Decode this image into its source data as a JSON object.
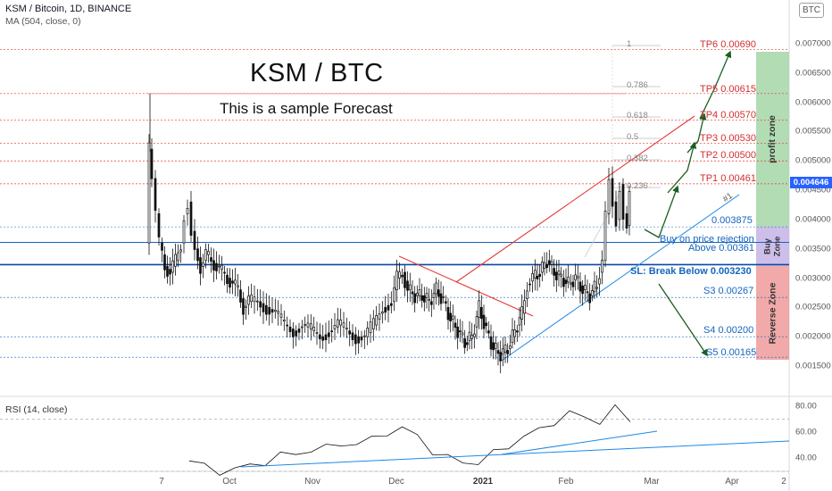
{
  "header": {
    "symbol": "KSM / Bitcoin, 1D, BINANCE",
    "indicator": "MA (504, close, 0)",
    "currency_badge": "BTC"
  },
  "annotations": {
    "title": "KSM / BTC",
    "subtitle": "This is a sample Forecast",
    "triangle_label": "#1"
  },
  "fib_labels": [
    "1",
    "0.786",
    "0.618",
    "0.5",
    "0.382",
    "0.236"
  ],
  "levels": {
    "tp6": "TP6 0.00690",
    "tp5": "TP5 0.00615",
    "tp4": "TP4 0.00570",
    "tp3": "TP3 0.00530",
    "tp2": "TP2 0.00500",
    "tp1": "TP1 0.00461",
    "entry_level": "0.003875",
    "buy_text": "Buy on price rejection",
    "above_text": "Above 0.00361",
    "sl_text": "SL: Break Below 0.003230",
    "s3": "S3 0.00267",
    "s4": "S4 0.00200",
    "s5": "S5 0.00165"
  },
  "zones": {
    "profit": "profit zone",
    "buy": "Buy\nZone",
    "reverse": "Reverse Zone"
  },
  "y_axis": {
    "ticks": [
      "0.007000",
      "0.006500",
      "0.006000",
      "0.005500",
      "0.005000",
      "0.004500",
      "0.004000",
      "0.003500",
      "0.003000",
      "0.002500",
      "0.002000",
      "0.001500"
    ],
    "current_price": "0.004646"
  },
  "x_axis": {
    "ticks": [
      "7",
      "Oct",
      "Nov",
      "Dec",
      "2021",
      "Feb",
      "Mar",
      "Apr",
      "2"
    ]
  },
  "rsi": {
    "title": "RSI (14, close)",
    "ticks": [
      "80.00",
      "60.00",
      "40.00"
    ]
  },
  "colors": {
    "tp_line": "#e53935",
    "blue_line": "#1565c0",
    "profit_zone": "#a5d6a7",
    "buy_zone": "#c5b3e6",
    "reverse_zone": "#ef9a9a",
    "candle": "#111111",
    "price_tag": "#2962ff"
  },
  "chart_data": {
    "type": "line",
    "title": "KSM / Bitcoin, 1D, BINANCE",
    "x": [
      "7",
      "Oct",
      "Nov",
      "Dec",
      "2021",
      "Feb",
      "Mar",
      "Apr"
    ],
    "approx_close_path": {
      "name": "KSM / BTC",
      "points": [
        [
          "Sep 7",
          0.0036
        ],
        [
          "Sep 8",
          0.0052
        ],
        [
          "Sep 10",
          0.0041
        ],
        [
          "Sep 15",
          0.0032
        ],
        [
          "Sep 25",
          0.0038
        ],
        [
          "Oct 1",
          0.0034
        ],
        [
          "Oct 10",
          0.0031
        ],
        [
          "Oct 20",
          0.0027
        ],
        [
          "Nov 1",
          0.0022
        ],
        [
          "Nov 15",
          0.002
        ],
        [
          "Nov 25",
          0.0021
        ],
        [
          "Dec 1",
          0.0034
        ],
        [
          "Dec 10",
          0.0028
        ],
        [
          "Dec 20",
          0.0026
        ],
        [
          "Dec 28",
          0.0019
        ],
        [
          "Jan 1",
          0.0018
        ],
        [
          "Jan 10",
          0.0017
        ],
        [
          "Jan 15",
          0.0024
        ],
        [
          "Jan 25",
          0.003
        ],
        [
          "Feb 1",
          0.0031
        ],
        [
          "Feb 8",
          0.0029
        ],
        [
          "Feb 12",
          0.0034
        ],
        [
          "Feb 17",
          0.0047
        ],
        [
          "Feb 22",
          0.0046
        ]
      ]
    },
    "forecast_levels": {
      "TP6": 0.0069,
      "TP5": 0.00615,
      "TP4": 0.0057,
      "TP3": 0.0053,
      "TP2": 0.005,
      "TP1": 0.00461,
      "Entry": 0.003875,
      "Above": 0.00361,
      "SL": 0.00323,
      "S3": 0.00267,
      "S4": 0.002,
      "S5": 0.00165
    },
    "ylim": [
      0.0013,
      0.0072
    ],
    "rsi_series": {
      "name": "RSI (14, close)",
      "ylim": [
        30,
        82
      ],
      "values": [
        38,
        34,
        30,
        31,
        35,
        37,
        42,
        44,
        46,
        48,
        52,
        50,
        55,
        60,
        62,
        58,
        45,
        40,
        38,
        36,
        44,
        50,
        56,
        62,
        68,
        74,
        72,
        68,
        78,
        70
      ]
    }
  }
}
